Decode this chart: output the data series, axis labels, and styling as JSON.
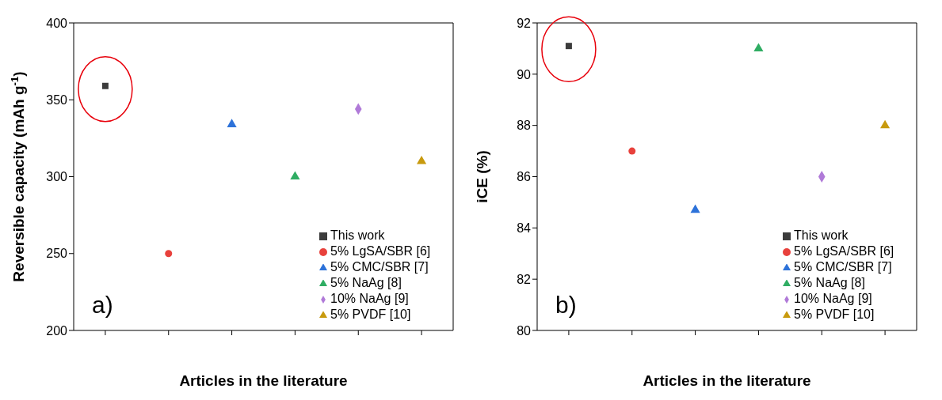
{
  "chart_data": [
    {
      "type": "scatter",
      "xlabel": "Articles in the literature",
      "ylabel": "Reversible capacity (mAh g$^{-1}$)",
      "annotations": [
        "a)"
      ],
      "categories": [
        null,
        null,
        null,
        null,
        null,
        null
      ],
      "ylim": [
        200,
        400
      ],
      "yticks": [
        200,
        250,
        300,
        350,
        400
      ],
      "tick_labels": "y",
      "legend": "bottom right",
      "grid": false,
      "series": [
        {
          "name": "This work",
          "color": "#3c3c3c",
          "marker": "square",
          "values": [
            359,
            null,
            null,
            null,
            null,
            null
          ]
        },
        {
          "name": "5% LgSA/SBR [6]",
          "color": "#e8413c",
          "marker": "circle",
          "values": [
            null,
            250,
            null,
            null,
            null,
            null
          ]
        },
        {
          "name": "5% CMC/SBR [7]",
          "color": "#2d72d9",
          "marker": "triangle",
          "values": [
            null,
            null,
            334,
            null,
            null,
            null
          ]
        },
        {
          "name": "5% NaAg [8]",
          "color": "#2fad63",
          "marker": "triangle",
          "values": [
            null,
            null,
            null,
            300,
            null,
            null
          ]
        },
        {
          "name": "10% NaAg [9]",
          "color": "#b07ad8",
          "marker": "diamond",
          "values": [
            null,
            null,
            null,
            null,
            344,
            null
          ]
        },
        {
          "name": "5% PVDF [10]",
          "color": "#c89a0e",
          "marker": "triangle",
          "values": [
            null,
            null,
            null,
            null,
            null,
            310
          ]
        }
      ]
    },
    {
      "type": "scatter",
      "xlabel": "Articles in the literature",
      "ylabel": "iCE (%)",
      "annotations": [
        "b)"
      ],
      "categories": [
        null,
        null,
        null,
        null,
        null,
        null
      ],
      "ylim": [
        80,
        92
      ],
      "yticks": [
        80,
        82,
        84,
        86,
        88,
        90,
        92
      ],
      "tick_labels": "y",
      "legend": "bottom right",
      "grid": false,
      "series": [
        {
          "name": "This work",
          "color": "#3c3c3c",
          "marker": "square",
          "values": [
            91.1,
            null,
            null,
            null,
            null,
            null
          ]
        },
        {
          "name": "5% LgSA/SBR [6]",
          "color": "#e8413c",
          "marker": "circle",
          "values": [
            null,
            87.0,
            null,
            null,
            null,
            null
          ]
        },
        {
          "name": "5% CMC/SBR [7]",
          "color": "#2d72d9",
          "marker": "triangle",
          "values": [
            null,
            null,
            84.7,
            null,
            null,
            null
          ]
        },
        {
          "name": "5% NaAg [8]",
          "color": "#2fad63",
          "marker": "triangle",
          "values": [
            null,
            null,
            null,
            91.0,
            null,
            null
          ]
        },
        {
          "name": "10% NaAg [9]",
          "color": "#b07ad8",
          "marker": "diamond",
          "values": [
            null,
            null,
            null,
            null,
            86.0,
            null
          ]
        },
        {
          "name": "5% PVDF [10]",
          "color": "#c89a0e",
          "marker": "triangle",
          "values": [
            null,
            null,
            null,
            null,
            null,
            88.0
          ]
        }
      ]
    }
  ]
}
